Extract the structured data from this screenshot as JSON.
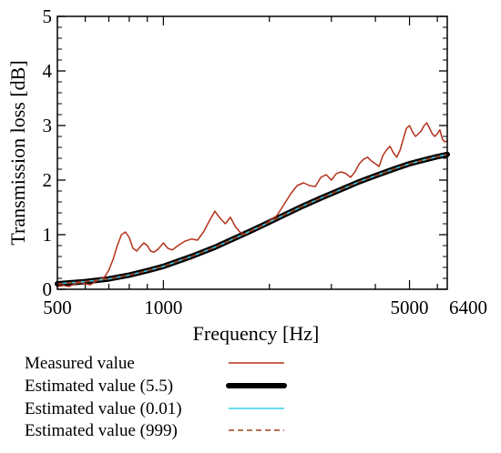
{
  "chart_data": {
    "type": "line",
    "xlabel": "Frequency [Hz]",
    "ylabel": "Transmission loss [dB]",
    "xscale": "log",
    "xlim": [
      500,
      6400
    ],
    "ylim": [
      0,
      5
    ],
    "xticks": [
      500,
      1000,
      5000,
      6400
    ],
    "yticks": [
      0,
      1,
      2,
      3,
      4,
      5
    ],
    "grid": false,
    "legend_position": "below",
    "series": [
      {
        "name": "Measured value",
        "color": "#b5321a",
        "style": "solid",
        "x": [
          500,
          520,
          540,
          560,
          580,
          600,
          620,
          640,
          660,
          680,
          700,
          720,
          740,
          760,
          780,
          800,
          820,
          840,
          860,
          880,
          900,
          920,
          940,
          960,
          980,
          1000,
          1030,
          1060,
          1100,
          1150,
          1200,
          1250,
          1300,
          1350,
          1400,
          1450,
          1500,
          1550,
          1600,
          1650,
          1700,
          1750,
          1800,
          1850,
          1900,
          1950,
          2000,
          2100,
          2200,
          2300,
          2400,
          2500,
          2600,
          2700,
          2800,
          2900,
          3000,
          3100,
          3200,
          3300,
          3400,
          3500,
          3600,
          3700,
          3800,
          3900,
          4000,
          4100,
          4200,
          4300,
          4400,
          4500,
          4600,
          4700,
          4800,
          4900,
          5000,
          5100,
          5200,
          5300,
          5400,
          5500,
          5600,
          5700,
          5800,
          5900,
          6000,
          6100,
          6200,
          6300,
          6400
        ],
        "y": [
          0.05,
          0.07,
          0.05,
          0.1,
          0.12,
          0.1,
          0.08,
          0.14,
          0.18,
          0.22,
          0.35,
          0.55,
          0.8,
          1.0,
          1.05,
          0.95,
          0.75,
          0.7,
          0.78,
          0.85,
          0.8,
          0.7,
          0.68,
          0.72,
          0.78,
          0.85,
          0.75,
          0.72,
          0.8,
          0.88,
          0.92,
          0.9,
          1.05,
          1.25,
          1.43,
          1.3,
          1.2,
          1.32,
          1.15,
          1.05,
          1.0,
          1.05,
          1.1,
          1.12,
          1.15,
          1.2,
          1.25,
          1.35,
          1.55,
          1.75,
          1.9,
          1.95,
          1.9,
          1.88,
          2.05,
          2.1,
          2.0,
          2.12,
          2.15,
          2.12,
          2.05,
          2.15,
          2.3,
          2.38,
          2.42,
          2.35,
          2.3,
          2.25,
          2.45,
          2.55,
          2.62,
          2.5,
          2.42,
          2.55,
          2.75,
          2.95,
          3.0,
          2.88,
          2.8,
          2.85,
          2.9,
          3.0,
          3.05,
          2.95,
          2.85,
          2.8,
          2.85,
          2.92,
          2.75,
          2.7,
          2.72
        ]
      },
      {
        "name": "Estimated value (5.5)",
        "color": "#000000",
        "style": "thick",
        "x": [
          500,
          600,
          700,
          800,
          900,
          1000,
          1200,
          1400,
          1600,
          1800,
          2000,
          2200,
          2500,
          2800,
          3200,
          3600,
          4000,
          4500,
          5000,
          5500,
          6000,
          6400
        ],
        "y": [
          0.1,
          0.14,
          0.19,
          0.26,
          0.34,
          0.42,
          0.6,
          0.77,
          0.94,
          1.09,
          1.23,
          1.36,
          1.53,
          1.67,
          1.83,
          1.97,
          2.08,
          2.2,
          2.3,
          2.37,
          2.43,
          2.47
        ]
      },
      {
        "name": "Estimated value (0.01)",
        "color": "#3ad0f0",
        "style": "solid",
        "x": [
          500,
          600,
          700,
          800,
          900,
          1000,
          1200,
          1400,
          1600,
          1800,
          2000,
          2200,
          2500,
          2800,
          3200,
          3600,
          4000,
          4500,
          5000,
          5500,
          6000,
          6400
        ],
        "y": [
          0.1,
          0.14,
          0.19,
          0.26,
          0.34,
          0.42,
          0.6,
          0.77,
          0.94,
          1.09,
          1.23,
          1.36,
          1.53,
          1.67,
          1.83,
          1.97,
          2.08,
          2.2,
          2.3,
          2.37,
          2.43,
          2.47
        ]
      },
      {
        "name": "Estimated value (999)",
        "color": "#a0401a",
        "style": "dashed",
        "x": [
          500,
          600,
          700,
          800,
          900,
          1000,
          1200,
          1400,
          1600,
          1800,
          2000,
          2200,
          2500,
          2800,
          3200,
          3600,
          4000,
          4500,
          5000,
          5500,
          6000,
          6400
        ],
        "y": [
          0.1,
          0.14,
          0.19,
          0.26,
          0.34,
          0.42,
          0.6,
          0.77,
          0.94,
          1.09,
          1.23,
          1.36,
          1.53,
          1.67,
          1.83,
          1.97,
          2.08,
          2.2,
          2.3,
          2.37,
          2.43,
          2.47
        ]
      }
    ]
  }
}
